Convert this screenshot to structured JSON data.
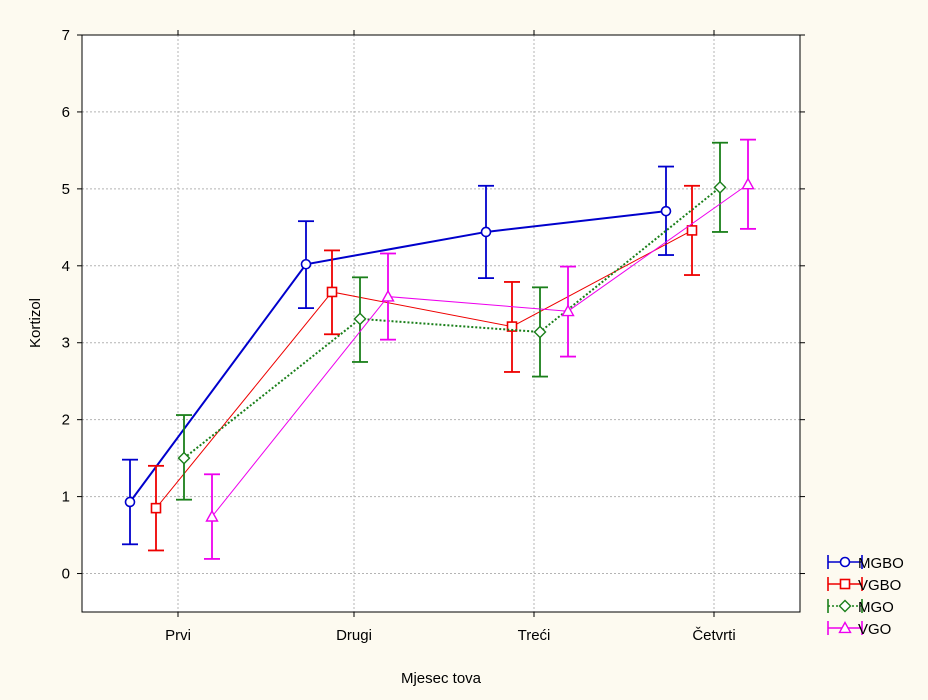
{
  "chart_data": {
    "type": "line",
    "xlabel": "Mjesec tova",
    "ylabel": "Kortizol",
    "categories": [
      "Prvi",
      "Drugi",
      "Treći",
      "Četvrti"
    ],
    "ylim": [
      -0.5,
      7
    ],
    "yticks": [
      0,
      1,
      2,
      3,
      4,
      5,
      6,
      7
    ],
    "grid": true,
    "legend_position": "bottom-right",
    "error_bars": true,
    "series": [
      {
        "name": "MGBO",
        "color": "#0000cc",
        "marker": "circle",
        "line_style": "solid",
        "values": [
          0.93,
          4.02,
          4.44,
          4.71
        ],
        "lower": [
          0.38,
          3.45,
          3.84,
          4.14
        ],
        "upper": [
          1.48,
          4.58,
          5.04,
          5.29
        ]
      },
      {
        "name": "VGBO",
        "color": "#ee0000",
        "marker": "square",
        "line_style": "solid",
        "values": [
          0.85,
          3.66,
          3.21,
          4.46
        ],
        "lower": [
          0.3,
          3.11,
          2.62,
          3.88
        ],
        "upper": [
          1.4,
          4.2,
          3.79,
          5.04
        ]
      },
      {
        "name": "MGO",
        "color": "#1a7f1a",
        "marker": "diamond",
        "line_style": "dotted",
        "values": [
          1.5,
          3.31,
          3.14,
          5.02
        ],
        "lower": [
          0.96,
          2.75,
          2.56,
          4.44
        ],
        "upper": [
          2.06,
          3.85,
          3.72,
          5.6
        ]
      },
      {
        "name": "VGO",
        "color": "#ee00ee",
        "marker": "triangle",
        "line_style": "solid",
        "values": [
          0.74,
          3.6,
          3.41,
          5.06
        ],
        "lower": [
          0.19,
          3.04,
          2.82,
          4.48
        ],
        "upper": [
          1.29,
          4.16,
          3.99,
          5.64
        ]
      }
    ]
  }
}
